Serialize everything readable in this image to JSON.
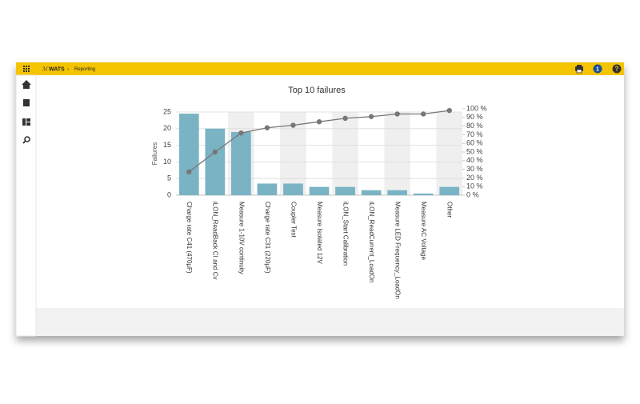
{
  "header": {
    "app": "WATS",
    "page": "Reporting",
    "notifications": 1,
    "help": "?"
  },
  "chart_data": {
    "type": "bar",
    "title": "Top 10 failures",
    "y_label": "Failures",
    "categories": [
      "Charge rate C41 (470µF)",
      "iLON_ReadBack CI and Cv",
      "Measure 1-10V continuity",
      "Charge rate C31 (220µF)",
      "Coupler Test",
      "Measure Isolated 12V",
      "iLON_Start Calibration",
      "iLON_ReadCurrent_LoadOn",
      "Measure LED Frequency_LoadOn",
      "Measure AC Voltage",
      "Other"
    ],
    "series": [
      {
        "color": "#7ab3c4",
        "values": [
          24.5,
          20,
          19,
          3.5,
          3.5,
          2.5,
          2.5,
          1.5,
          1.5,
          0.5,
          2.5
        ]
      },
      {
        "color": "#777777",
        "type": "line",
        "axis": "y2",
        "values": [
          27,
          50,
          72,
          78,
          81,
          85,
          89,
          91,
          94,
          94,
          98
        ]
      }
    ],
    "ylim": [
      0,
      25
    ],
    "yticks": [
      0,
      5,
      10,
      15,
      20,
      25
    ],
    "y2lim": [
      0,
      100
    ],
    "y2ticks": [
      {
        "value": 0,
        "label": "0 %"
      },
      {
        "value": 10,
        "label": "10 %"
      },
      {
        "value": 20,
        "label": "20 %"
      },
      {
        "value": 30,
        "label": "30 %"
      },
      {
        "value": 40,
        "label": "40 %"
      },
      {
        "value": 50,
        "label": "50 %"
      },
      {
        "value": 60,
        "label": "60 %"
      },
      {
        "value": 70,
        "label": "70 %"
      },
      {
        "value": 80,
        "label": "80 %"
      },
      {
        "value": 90,
        "label": "90 %"
      },
      {
        "value": 100,
        "label": "100 %"
      }
    ],
    "grid": true
  }
}
